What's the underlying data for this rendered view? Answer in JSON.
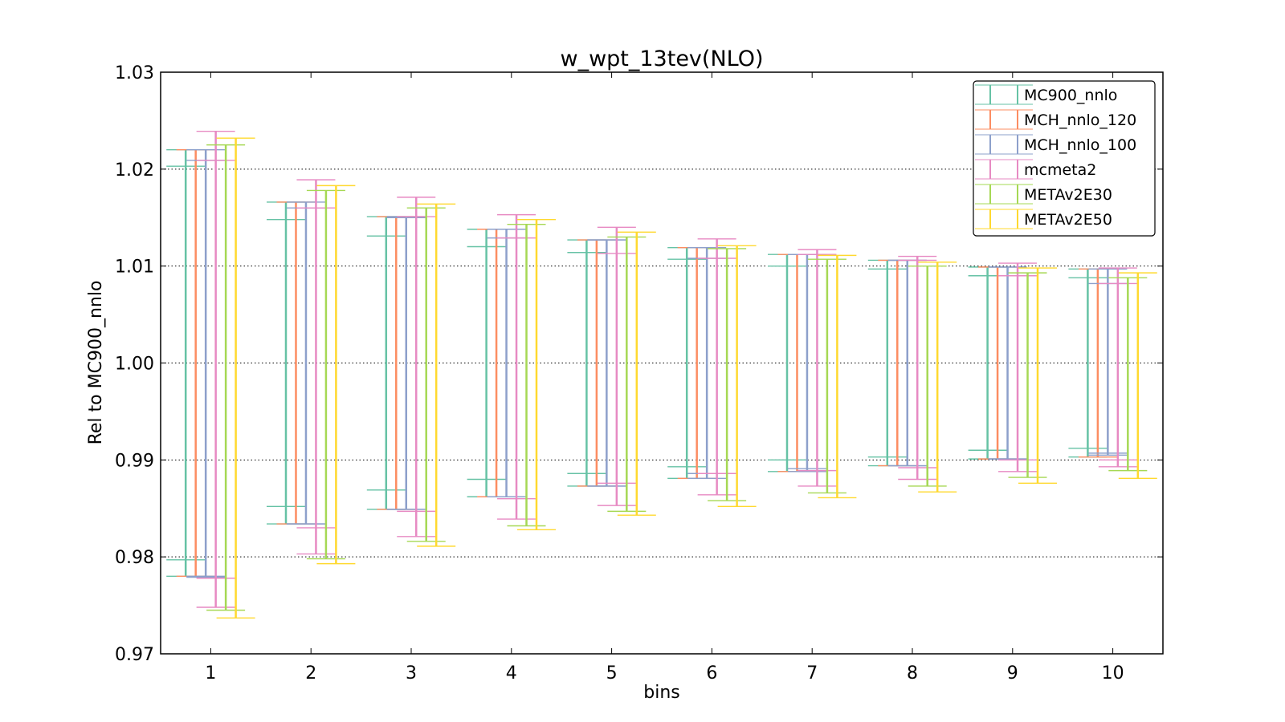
{
  "chart_data": {
    "type": "errorbar",
    "title": "w_wpt_13tev(NLO)",
    "xlabel": "bins",
    "ylabel": "Rel to MC900_nnlo",
    "ylim": [
      0.97,
      1.03
    ],
    "xlim": [
      0.5,
      10.5
    ],
    "yticks": [
      "0.97",
      "0.98",
      "0.99",
      "1.00",
      "1.01",
      "1.02",
      "1.03"
    ],
    "xticks": [
      "1",
      "2",
      "3",
      "4",
      "5",
      "6",
      "7",
      "8",
      "9",
      "10"
    ],
    "grid": "horizontal dotted",
    "legend_position": "top-right",
    "series": [
      {
        "name": "MC900_nnlo",
        "color": "#66c2a5",
        "ranges": [
          [
            0.978,
            1.022
          ],
          [
            0.9834,
            1.0166
          ],
          [
            0.9849,
            1.0151
          ],
          [
            0.9862,
            1.0138
          ],
          [
            0.9873,
            1.0127
          ],
          [
            0.9881,
            1.0119
          ],
          [
            0.9888,
            1.0112
          ],
          [
            0.9894,
            1.0106
          ],
          [
            0.9901,
            1.0099
          ],
          [
            0.9903,
            1.0097
          ]
        ],
        "inner": [
          [
            0.9797,
            1.0203
          ],
          [
            0.9852,
            1.0148
          ],
          [
            0.9869,
            1.0131
          ],
          [
            0.988,
            1.012
          ],
          [
            0.9886,
            1.0114
          ],
          [
            0.9893,
            1.0107
          ],
          [
            0.99,
            1.01
          ],
          [
            0.9903,
            1.0097
          ],
          [
            0.991,
            1.009
          ],
          [
            0.9912,
            1.0088
          ]
        ]
      },
      {
        "name": "MCH_nnlo_120",
        "color": "#fc8d62",
        "ranges": [
          [
            0.978,
            1.022
          ],
          [
            0.9834,
            1.0166
          ],
          [
            0.9849,
            1.0151
          ],
          [
            0.9862,
            1.0138
          ],
          [
            0.9873,
            1.0127
          ],
          [
            0.9881,
            1.0119
          ],
          [
            0.9888,
            1.0112
          ],
          [
            0.9894,
            1.0106
          ],
          [
            0.9901,
            1.0099
          ],
          [
            0.9903,
            1.0097
          ]
        ]
      },
      {
        "name": "MCH_nnlo_100",
        "color": "#8da0cb",
        "ranges": [
          [
            0.978,
            1.022
          ],
          [
            0.9834,
            1.0166
          ],
          [
            0.9849,
            1.0151
          ],
          [
            0.9862,
            1.0138
          ],
          [
            0.9873,
            1.0127
          ],
          [
            0.9881,
            1.0119
          ],
          [
            0.9888,
            1.0112
          ],
          [
            0.9894,
            1.0106
          ],
          [
            0.9901,
            1.0099
          ],
          [
            0.9905,
            1.0097
          ]
        ],
        "inner": [
          [
            0.9779,
            1.0209
          ],
          [
            0.9834,
            1.016
          ],
          [
            0.9849,
            1.015
          ],
          [
            0.9862,
            1.0129
          ],
          [
            0.9873,
            1.0127
          ],
          [
            0.9886,
            1.0108
          ],
          [
            0.9891,
            1.0112
          ],
          [
            0.9894,
            1.0106
          ],
          [
            0.9901,
            1.0099
          ],
          [
            0.9907,
            1.0082
          ]
        ]
      },
      {
        "name": "mcmeta2",
        "color": "#e78ac3",
        "ranges": [
          [
            0.9748,
            1.0239
          ],
          [
            0.9803,
            1.0189
          ],
          [
            0.9821,
            1.0171
          ],
          [
            0.9839,
            1.0153
          ],
          [
            0.9853,
            1.014
          ],
          [
            0.9864,
            1.0128
          ],
          [
            0.9873,
            1.0117
          ],
          [
            0.988,
            1.011
          ],
          [
            0.9888,
            1.0103
          ],
          [
            0.9893,
            1.0098
          ]
        ],
        "inner": [
          [
            0.9778,
            1.0209
          ],
          [
            0.983,
            1.016
          ],
          [
            0.9847,
            1.0151
          ],
          [
            0.986,
            1.0129
          ],
          [
            0.9876,
            1.0113
          ],
          [
            0.9886,
            1.0108
          ],
          [
            0.9889,
            1.0112
          ],
          [
            0.9892,
            1.0106
          ],
          [
            0.99,
            1.009
          ],
          [
            0.99,
            1.0082
          ]
        ]
      },
      {
        "name": "METAv2E30",
        "color": "#a6d854",
        "ranges": [
          [
            0.9745,
            1.0225
          ],
          [
            0.9798,
            1.0178
          ],
          [
            0.9816,
            1.016
          ],
          [
            0.9832,
            1.0143
          ],
          [
            0.9847,
            1.013
          ],
          [
            0.9858,
            1.0118
          ],
          [
            0.9866,
            1.0107
          ],
          [
            0.9873,
            1.01
          ],
          [
            0.9882,
            1.0093
          ],
          [
            0.9889,
            1.0088
          ]
        ]
      },
      {
        "name": "METAv2E50",
        "color": "#ffd92f",
        "ranges": [
          [
            0.9737,
            1.0232
          ],
          [
            0.9793,
            1.0183
          ],
          [
            0.9811,
            1.0164
          ],
          [
            0.9828,
            1.0148
          ],
          [
            0.9843,
            1.0135
          ],
          [
            0.9852,
            1.0121
          ],
          [
            0.9861,
            1.0111
          ],
          [
            0.9867,
            1.0104
          ],
          [
            0.9876,
            1.0098
          ],
          [
            0.9881,
            1.0093
          ]
        ]
      }
    ]
  }
}
